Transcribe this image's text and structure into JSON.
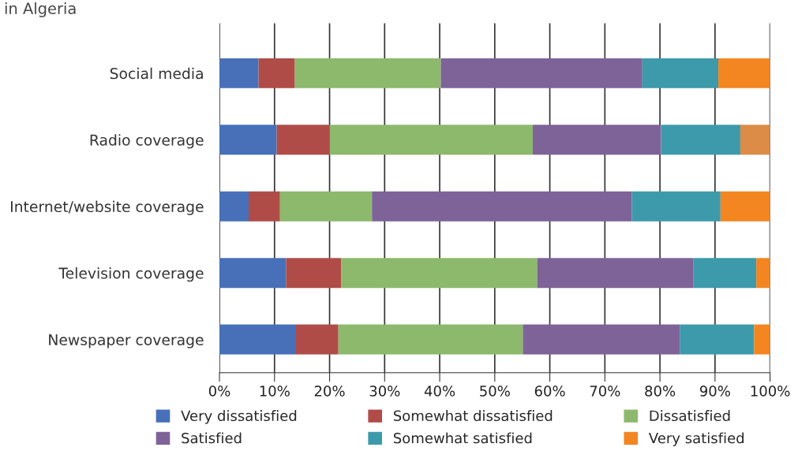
{
  "chart_data": {
    "type": "bar",
    "orientation": "horizontal",
    "stacked": true,
    "title": "in Algeria",
    "categories": [
      "Social media",
      "Radio coverage",
      "Internet/website coverage",
      "Television coverage",
      "Newspaper coverage"
    ],
    "series": [
      {
        "name": "Very dissatisfied",
        "color": "#4770b9",
        "values": [
          7.1,
          10.4,
          5.3,
          12.1,
          13.9
        ]
      },
      {
        "name": "Somewhat dissatisfied",
        "color": "#af4c48",
        "values": [
          6.6,
          9.6,
          5.7,
          10.0,
          7.7
        ]
      },
      {
        "name": "Dissatisfied",
        "color": "#8cb96b",
        "values": [
          26.5,
          36.9,
          16.7,
          35.6,
          33.5
        ]
      },
      {
        "name": "Satisfied",
        "color": "#7e6398",
        "values": [
          36.6,
          23.3,
          47.2,
          28.4,
          28.5
        ]
      },
      {
        "name": "Somewhat satisfied",
        "color": "#3c9aab",
        "values": [
          13.8,
          14.4,
          16.1,
          11.4,
          13.5
        ]
      },
      {
        "name": "Very satisfied",
        "color": "#f38621",
        "colors": [
          "#f38621",
          "#dd8c47",
          "#f38621",
          "#f38621",
          "#f38621"
        ],
        "values": [
          9.4,
          5.4,
          9.0,
          2.5,
          2.9
        ]
      }
    ],
    "xlim": [
      0,
      100
    ],
    "xticks": [
      {
        "value": 0,
        "label": "0%"
      },
      {
        "value": 10,
        "label": "10%"
      },
      {
        "value": 20,
        "label": "20%"
      },
      {
        "value": 30,
        "label": "30%"
      },
      {
        "value": 40,
        "label": "40%"
      },
      {
        "value": 50,
        "label": "50%"
      },
      {
        "value": 60,
        "label": "60%"
      },
      {
        "value": 70,
        "label": "70%"
      },
      {
        "value": 80,
        "label": "80%"
      },
      {
        "value": 90,
        "label": "90%"
      },
      {
        "value": 100,
        "label": "100%"
      }
    ],
    "grid": "x",
    "legend": "bottom"
  }
}
